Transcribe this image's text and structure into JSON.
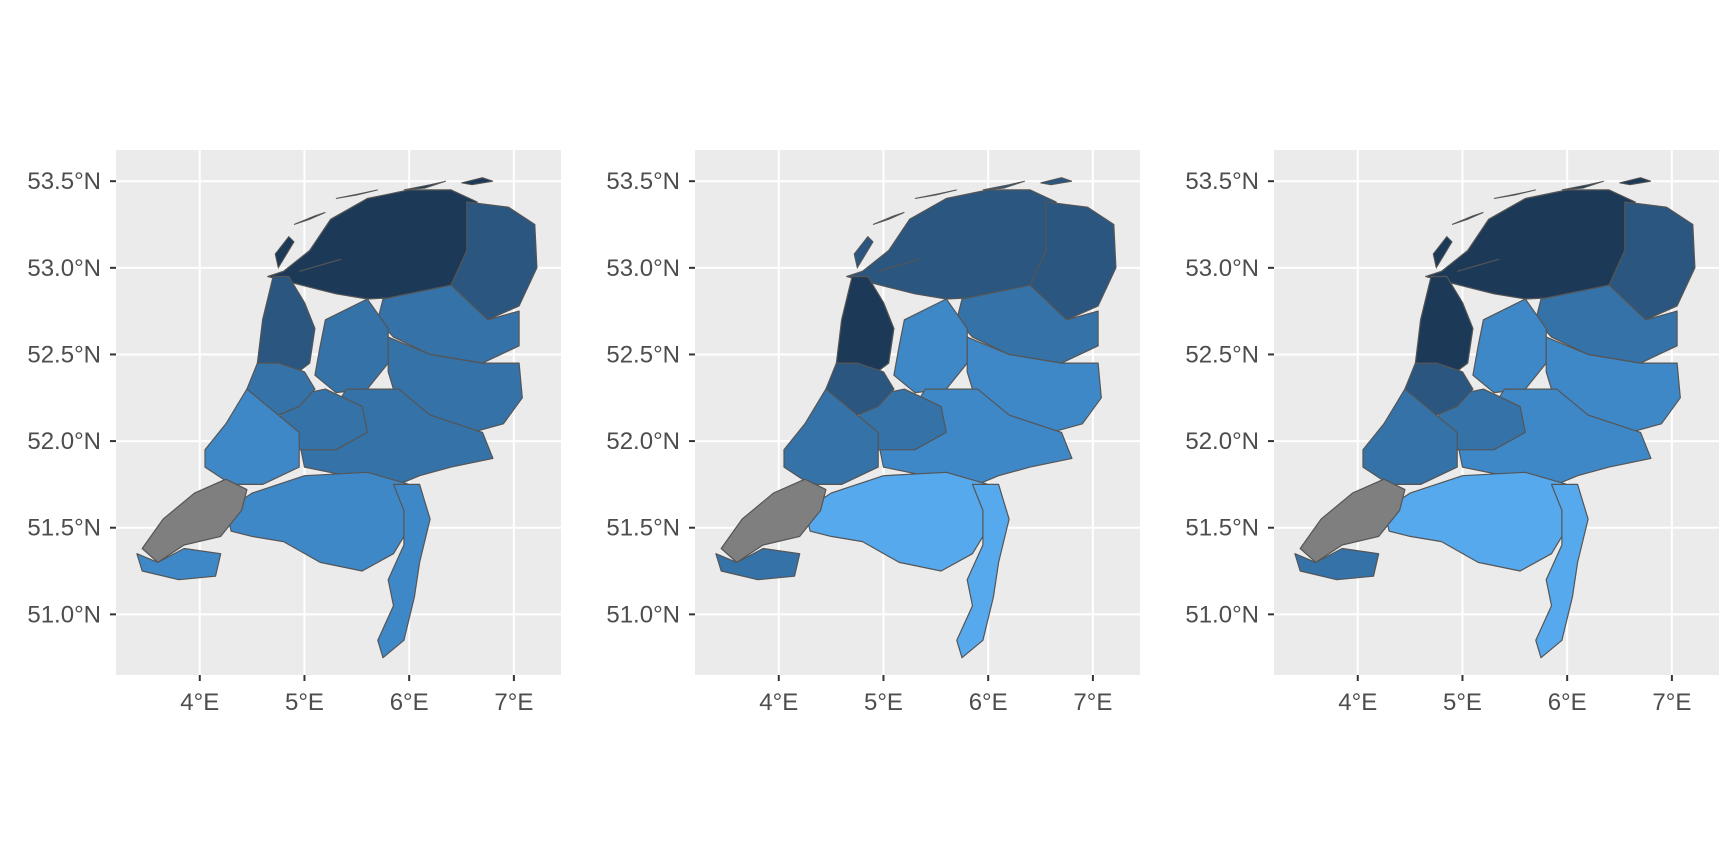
{
  "figure": {
    "panel_count": 3,
    "background": "#ffffff",
    "panel_background": "#ebebeb",
    "grid_color": "#ffffff",
    "axis_text_color": "#4d4d4d",
    "border_color": "#555555",
    "na_color": "#7f7f7f"
  },
  "axes": {
    "lon_ticks": [
      4,
      5,
      6,
      7
    ],
    "lat_ticks": [
      51.0,
      51.5,
      52.0,
      52.5,
      53.0,
      53.5
    ],
    "lon_tick_labels": [
      "4°E",
      "5°E",
      "6°E",
      "7°E"
    ],
    "lat_tick_labels": [
      "51.0°N",
      "51.5°N",
      "52.0°N",
      "52.5°N",
      "53.0°N",
      "53.5°N"
    ],
    "lon_range": [
      3.2,
      7.45
    ],
    "lat_range": [
      50.65,
      53.68
    ]
  },
  "legend": "none",
  "palette": {
    "darkest": "#1c3a58",
    "dark": "#2a5680",
    "mid": "#3572a8",
    "light": "#3f88c8",
    "lightest": "#56a9ec",
    "na": "#7f7f7f"
  },
  "panels": [
    {
      "north": "darkest",
      "groningen": "dark",
      "drenthe": "mid",
      "overijssel": "mid",
      "gelderland": "mid",
      "utrecht": "mid",
      "flevoland": "mid",
      "nholland": "dark",
      "randstad": "mid",
      "southholland": "light",
      "brabant": "light",
      "limburg": "light",
      "zeeland": "na",
      "zeeland_west": "light"
    },
    {
      "north": "dark",
      "groningen": "dark",
      "drenthe": "mid",
      "overijssel": "light",
      "gelderland": "light",
      "utrecht": "mid",
      "flevoland": "light",
      "nholland": "darkest",
      "randstad": "dark",
      "southholland": "mid",
      "brabant": "lightest",
      "limburg": "lightest",
      "zeeland": "na",
      "zeeland_west": "mid"
    },
    {
      "north": "darkest",
      "groningen": "dark",
      "drenthe": "mid",
      "overijssel": "light",
      "gelderland": "light",
      "utrecht": "mid",
      "flevoland": "light",
      "nholland": "darkest",
      "randstad": "dark",
      "southholland": "mid",
      "brabant": "lightest",
      "limburg": "lightest",
      "zeeland": "na",
      "zeeland_west": "mid"
    }
  ]
}
